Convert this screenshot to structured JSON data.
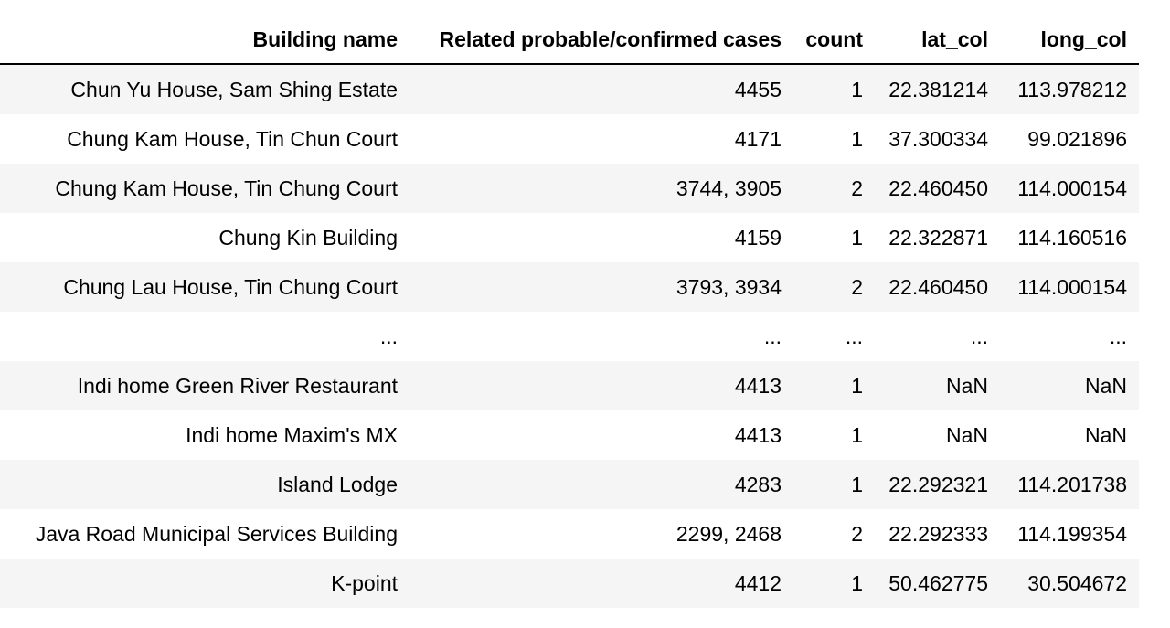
{
  "table": {
    "columns": [
      "Building name",
      "Related probable/confirmed cases",
      "count",
      "lat_col",
      "long_col"
    ],
    "rows": [
      [
        "Chun Yu House, Sam Shing Estate",
        "4455",
        "1",
        "22.381214",
        "113.978212"
      ],
      [
        "Chung Kam House, Tin Chun Court",
        "4171",
        "1",
        "37.300334",
        "99.021896"
      ],
      [
        "Chung Kam House, Tin Chung Court",
        "3744, 3905",
        "2",
        "22.460450",
        "114.000154"
      ],
      [
        "Chung Kin Building",
        "4159",
        "1",
        "22.322871",
        "114.160516"
      ],
      [
        "Chung Lau House, Tin Chung Court",
        "3793, 3934",
        "2",
        "22.460450",
        "114.000154"
      ],
      [
        "...",
        "...",
        "...",
        "...",
        "..."
      ],
      [
        "Indi home Green River Restaurant",
        "4413",
        "1",
        "NaN",
        "NaN"
      ],
      [
        "Indi home Maxim's MX",
        "4413",
        "1",
        "NaN",
        "NaN"
      ],
      [
        "Island Lodge",
        "4283",
        "1",
        "22.292321",
        "114.201738"
      ],
      [
        "Java Road Municipal Services Building",
        "2299, 2468",
        "2",
        "22.292333",
        "114.199354"
      ],
      [
        "K-point",
        "4412",
        "1",
        "50.462775",
        "30.504672"
      ]
    ]
  }
}
